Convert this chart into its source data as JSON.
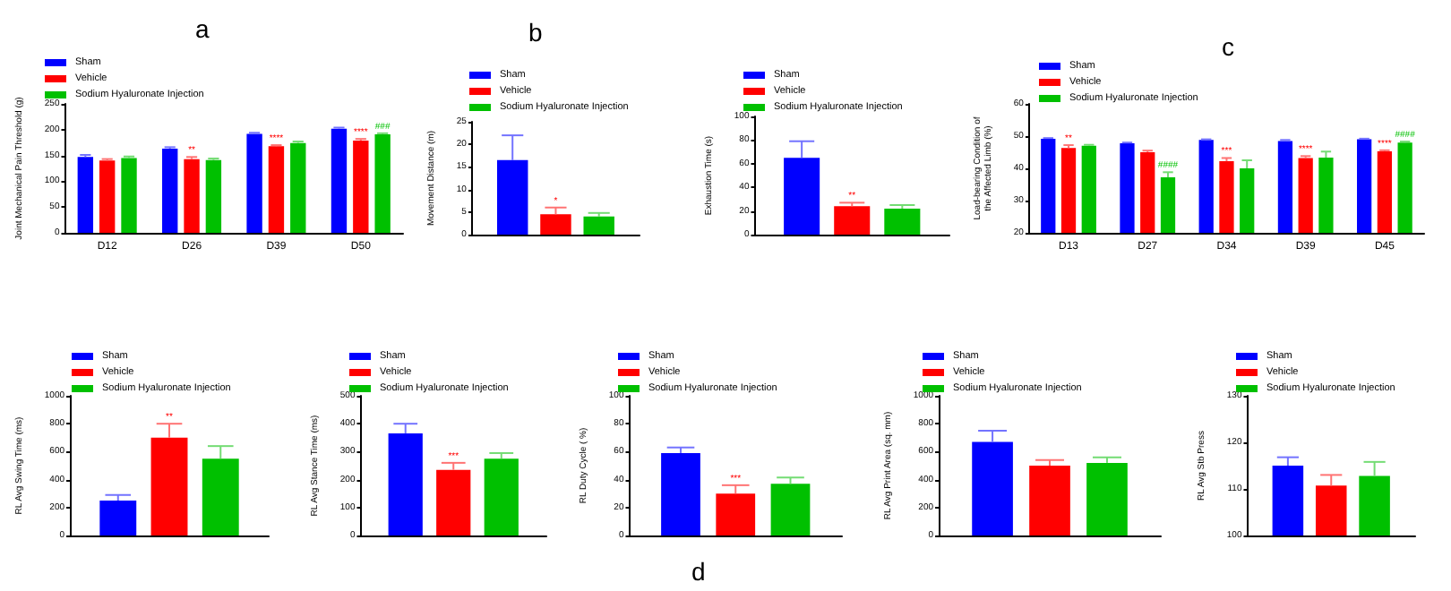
{
  "chart_data": [
    {
      "type": "bar",
      "title": "a",
      "ylabel": "Joint Mechanical Pain Threshold (g)",
      "categories": [
        "D12",
        "D26",
        "D39",
        "D50"
      ],
      "ylim": [
        0,
        250
      ],
      "yticks": [
        0,
        50,
        100,
        150,
        200,
        250
      ],
      "legend": "top left",
      "series": [
        {
          "name": "Sham",
          "color": "#0000ff",
          "values": [
            147,
            163,
            192,
            202
          ],
          "errors": [
            [
              147,
              151
            ],
            [
              163,
              166
            ],
            [
              192,
              194
            ],
            [
              202,
              204
            ]
          ]
        },
        {
          "name": "Vehicle",
          "color": "#ff0000",
          "values": [
            140,
            143,
            168,
            179
          ],
          "errors": [
            [
              140,
              143
            ],
            [
              143,
              147
            ],
            [
              168,
              170
            ],
            [
              179,
              182
            ]
          ],
          "value_labels": [
            null,
            "**",
            "****",
            "****"
          ]
        },
        {
          "name": "Sodium Hyaluronate Injection",
          "color": "#00c000",
          "values": [
            145,
            141,
            174,
            191
          ],
          "errors": [
            [
              145,
              148
            ],
            [
              141,
              144
            ],
            [
              174,
              177
            ],
            [
              191,
              193
            ]
          ],
          "value_labels": [
            null,
            null,
            null,
            "###"
          ]
        }
      ]
    },
    {
      "type": "bar",
      "title": "b",
      "ylabel": "Movement Distance (m)",
      "categories": [
        null
      ],
      "ylim": [
        0,
        25
      ],
      "yticks": [
        0,
        5,
        10,
        15,
        20,
        25
      ],
      "legend": "top left",
      "series": [
        {
          "name": "Sham",
          "color": "#0000ff",
          "values": [
            16.5
          ],
          "errors": [
            [
              16.5,
              22
            ]
          ]
        },
        {
          "name": "Vehicle",
          "color": "#ff0000",
          "values": [
            4.5
          ],
          "errors": [
            [
              4.5,
              6
            ]
          ],
          "value_labels": [
            "*"
          ]
        },
        {
          "name": "Sodium Hyaluronate Injection",
          "color": "#00c000",
          "values": [
            4
          ],
          "errors": [
            [
              4,
              4.8
            ]
          ]
        }
      ]
    },
    {
      "type": "bar",
      "ylabel": "Exhaustion Time (s)",
      "categories": [
        null
      ],
      "ylim": [
        0,
        100
      ],
      "yticks": [
        0,
        20,
        40,
        60,
        80,
        100
      ],
      "legend": "top left",
      "series": [
        {
          "name": "Sham",
          "color": "#0000ff",
          "values": [
            65
          ],
          "errors": [
            [
              65,
              79
            ]
          ]
        },
        {
          "name": "Vehicle",
          "color": "#ff0000",
          "values": [
            24
          ],
          "errors": [
            [
              24,
              27
            ]
          ],
          "value_labels": [
            "**"
          ]
        },
        {
          "name": "Sodium Hyaluronate Injection",
          "color": "#00c000",
          "values": [
            22
          ],
          "errors": [
            [
              22,
              25
            ]
          ]
        }
      ]
    },
    {
      "type": "bar",
      "title": "c",
      "ylabel": "Load-bearing Condition of\nthe Affected Limb (%)",
      "categories": [
        "D13",
        "D27",
        "D34",
        "D39",
        "D45"
      ],
      "ylim": [
        20,
        60
      ],
      "yticks": [
        20,
        30,
        40,
        50,
        60
      ],
      "legend": "top left",
      "series": [
        {
          "name": "Sham",
          "color": "#0000ff",
          "values": [
            49.2,
            47.8,
            48.8,
            48.5,
            49
          ],
          "errors": [
            [
              49.2,
              49.4
            ],
            [
              47.8,
              48
            ],
            [
              48.8,
              49
            ],
            [
              48.5,
              48.8
            ],
            [
              49,
              49.2
            ]
          ]
        },
        {
          "name": "Vehicle",
          "color": "#ff0000",
          "values": [
            46.3,
            45,
            42.2,
            43.2,
            45.3
          ],
          "errors": [
            [
              46.3,
              47.2
            ],
            [
              45,
              45.5
            ],
            [
              42.2,
              43.2
            ],
            [
              43.2,
              43.8
            ],
            [
              45.3,
              45.6
            ]
          ],
          "value_labels": [
            "**",
            null,
            "***",
            "****",
            "****"
          ]
        },
        {
          "name": "Sodium Hyaluronate Injection",
          "color": "#00c000",
          "values": [
            47,
            37.2,
            40,
            43.3,
            48
          ],
          "errors": [
            [
              47,
              47.3
            ],
            [
              37.2,
              38.8
            ],
            [
              40,
              42.5
            ],
            [
              43.3,
              45.2
            ],
            [
              48,
              48.3
            ]
          ],
          "value_labels": [
            null,
            "####",
            null,
            null,
            "####"
          ]
        }
      ]
    },
    {
      "type": "bar",
      "ylabel": "RL Avg Swing Time (ms)",
      "categories": [
        null
      ],
      "ylim": [
        0,
        1000
      ],
      "yticks": [
        0,
        200,
        400,
        600,
        800,
        1000
      ],
      "legend": "top left",
      "series": [
        {
          "name": "Sham",
          "color": "#0000ff",
          "values": [
            250
          ],
          "errors": [
            [
              250,
              290
            ]
          ]
        },
        {
          "name": "Vehicle",
          "color": "#ff0000",
          "values": [
            700
          ],
          "errors": [
            [
              700,
              800
            ]
          ],
          "value_labels": [
            "**"
          ]
        },
        {
          "name": "Sodium Hyaluronate Injection",
          "color": "#00c000",
          "values": [
            550
          ],
          "errors": [
            [
              550,
              640
            ]
          ]
        }
      ]
    },
    {
      "type": "bar",
      "ylabel": "RL Avg Stance Time (ms)",
      "categories": [
        null
      ],
      "ylim": [
        0,
        500
      ],
      "yticks": [
        0,
        100,
        200,
        300,
        400,
        500
      ],
      "legend": "top left",
      "series": [
        {
          "name": "Sham",
          "color": "#0000ff",
          "values": [
            365
          ],
          "errors": [
            [
              365,
              400
            ]
          ]
        },
        {
          "name": "Vehicle",
          "color": "#ff0000",
          "values": [
            235
          ],
          "errors": [
            [
              235,
              260
            ]
          ],
          "value_labels": [
            "***"
          ]
        },
        {
          "name": "Sodium Hyaluronate Injection",
          "color": "#00c000",
          "values": [
            275
          ],
          "errors": [
            [
              275,
              295
            ]
          ]
        }
      ]
    },
    {
      "type": "bar",
      "title": "d",
      "ylabel": "RL Duty Cycle ( %)",
      "categories": [
        null
      ],
      "ylim": [
        0,
        100
      ],
      "yticks": [
        0,
        20,
        40,
        60,
        80,
        100
      ],
      "legend": "top left",
      "series": [
        {
          "name": "Sham",
          "color": "#0000ff",
          "values": [
            59
          ],
          "errors": [
            [
              59,
              63
            ]
          ]
        },
        {
          "name": "Vehicle",
          "color": "#ff0000",
          "values": [
            30
          ],
          "errors": [
            [
              30,
              36
            ]
          ],
          "value_labels": [
            "***"
          ]
        },
        {
          "name": "Sodium Hyaluronate Injection",
          "color": "#00c000",
          "values": [
            37
          ],
          "errors": [
            [
              37,
              41.5
            ]
          ]
        }
      ]
    },
    {
      "type": "bar",
      "ylabel": "RL Avg Print Area (sq. mm)",
      "categories": [
        null
      ],
      "ylim": [
        0,
        1000
      ],
      "yticks": [
        0,
        200,
        400,
        600,
        800,
        1000
      ],
      "legend": "top left",
      "series": [
        {
          "name": "Sham",
          "color": "#0000ff",
          "values": [
            670
          ],
          "errors": [
            [
              670,
              750
            ]
          ]
        },
        {
          "name": "Vehicle",
          "color": "#ff0000",
          "values": [
            500
          ],
          "errors": [
            [
              500,
              540
            ]
          ]
        },
        {
          "name": "Sodium Hyaluronate Injection",
          "color": "#00c000",
          "values": [
            520
          ],
          "errors": [
            [
              520,
              560
            ]
          ]
        }
      ]
    },
    {
      "type": "bar",
      "ylabel": "RL Avg Stb Press",
      "categories": [
        null
      ],
      "ylim": [
        100,
        130
      ],
      "yticks": [
        100,
        110,
        120,
        130
      ],
      "legend": "top left",
      "series": [
        {
          "name": "Sham",
          "color": "#0000ff",
          "values": [
            115
          ],
          "errors": [
            [
              115,
              116.8
            ]
          ]
        },
        {
          "name": "Vehicle",
          "color": "#ff0000",
          "values": [
            110.7
          ],
          "errors": [
            [
              110.7,
              113
            ]
          ]
        },
        {
          "name": "Sodium Hyaluronate Injection",
          "color": "#00c000",
          "values": [
            112.8
          ],
          "errors": [
            [
              112.8,
              115.8
            ]
          ]
        }
      ]
    }
  ]
}
